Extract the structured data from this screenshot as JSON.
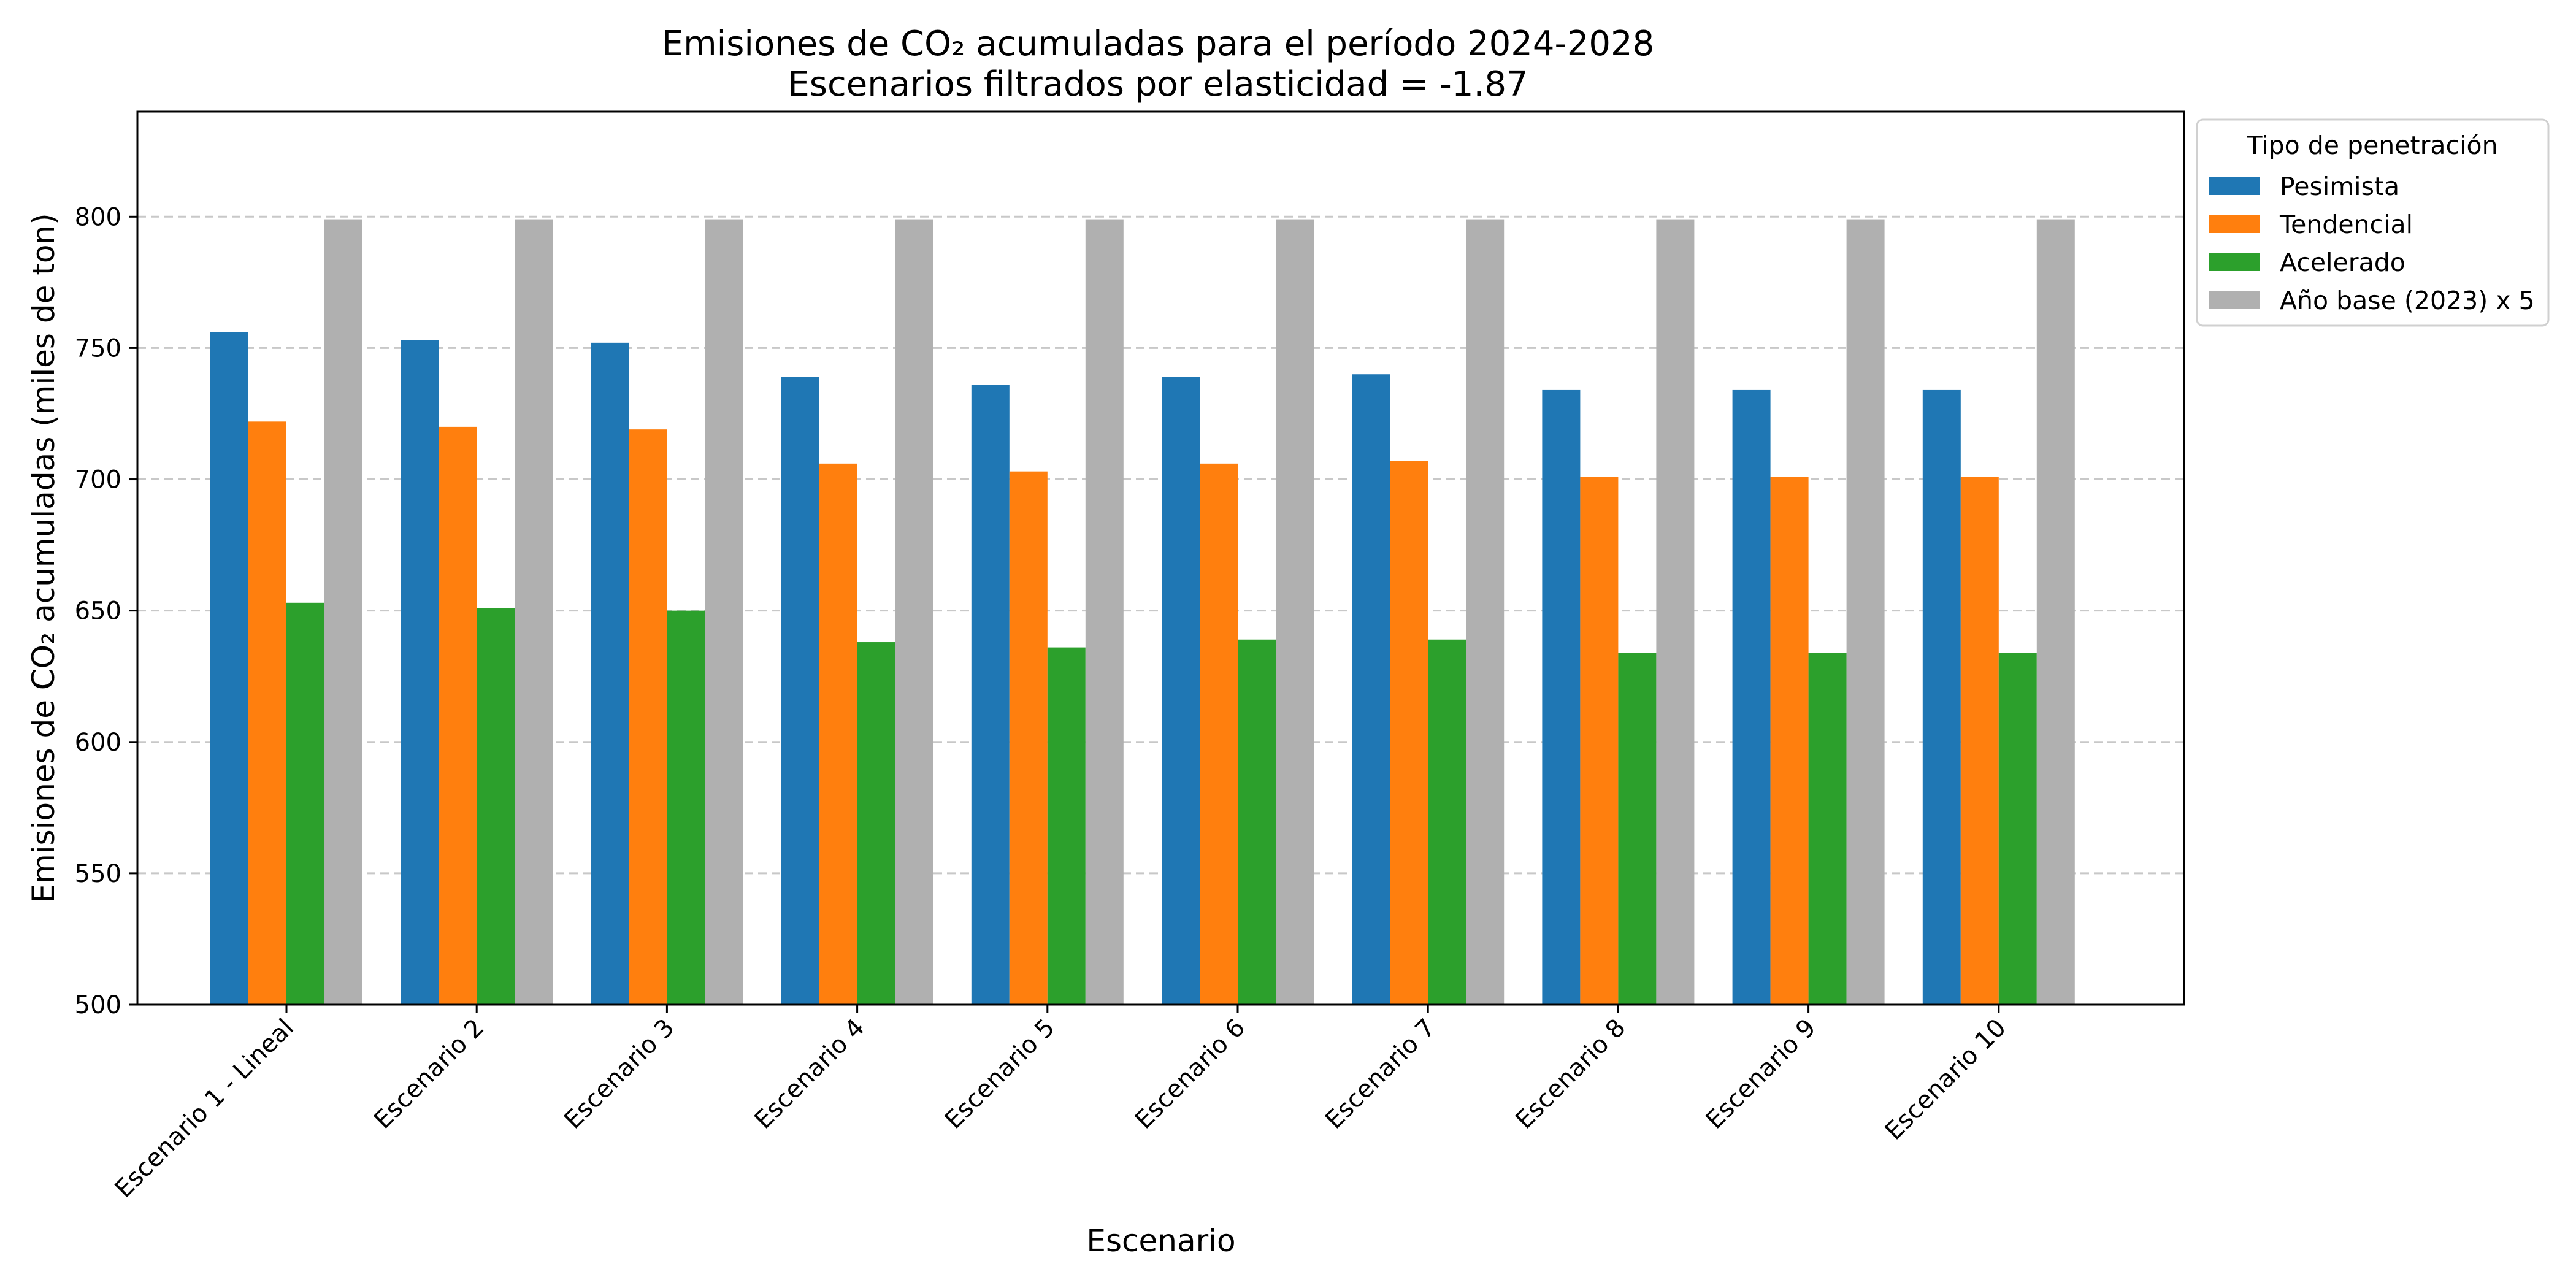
{
  "chart_data": {
    "type": "bar",
    "title": "Emisiones de CO₂ acumuladas para el período 2024-2028",
    "subtitle": "Escenarios filtrados por elasticidad = -1.87",
    "xlabel": "Escenario",
    "ylabel": "Emisiones de CO₂ acumuladas (miles de ton)",
    "ylim": [
      500,
      840
    ],
    "yticks": [
      500,
      550,
      600,
      650,
      700,
      750,
      800
    ],
    "grid": true,
    "grid_axis": "y",
    "legend": {
      "title": "Tipo de penetración",
      "placement": "outside-right-top"
    },
    "categories": [
      "Escenario 1 - Lineal",
      "Escenario 2",
      "Escenario 3",
      "Escenario 4",
      "Escenario 5",
      "Escenario 6",
      "Escenario 7",
      "Escenario 8",
      "Escenario 9",
      "Escenario 10"
    ],
    "series": [
      {
        "name": "Pesimista",
        "color": "#1f77b4",
        "values": [
          756,
          753,
          752,
          739,
          736,
          739,
          740,
          734,
          734,
          734
        ]
      },
      {
        "name": "Tendencial",
        "color": "#ff7f0e",
        "values": [
          722,
          720,
          719,
          706,
          703,
          706,
          707,
          701,
          701,
          701
        ]
      },
      {
        "name": "Acelerado",
        "color": "#2ca02c",
        "values": [
          653,
          651,
          650,
          638,
          636,
          639,
          639,
          634,
          634,
          634
        ]
      },
      {
        "name": "Año base (2023) x 5",
        "color": "#b0b0b0",
        "values": [
          799,
          799,
          799,
          799,
          799,
          799,
          799,
          799,
          799,
          799
        ]
      }
    ]
  }
}
